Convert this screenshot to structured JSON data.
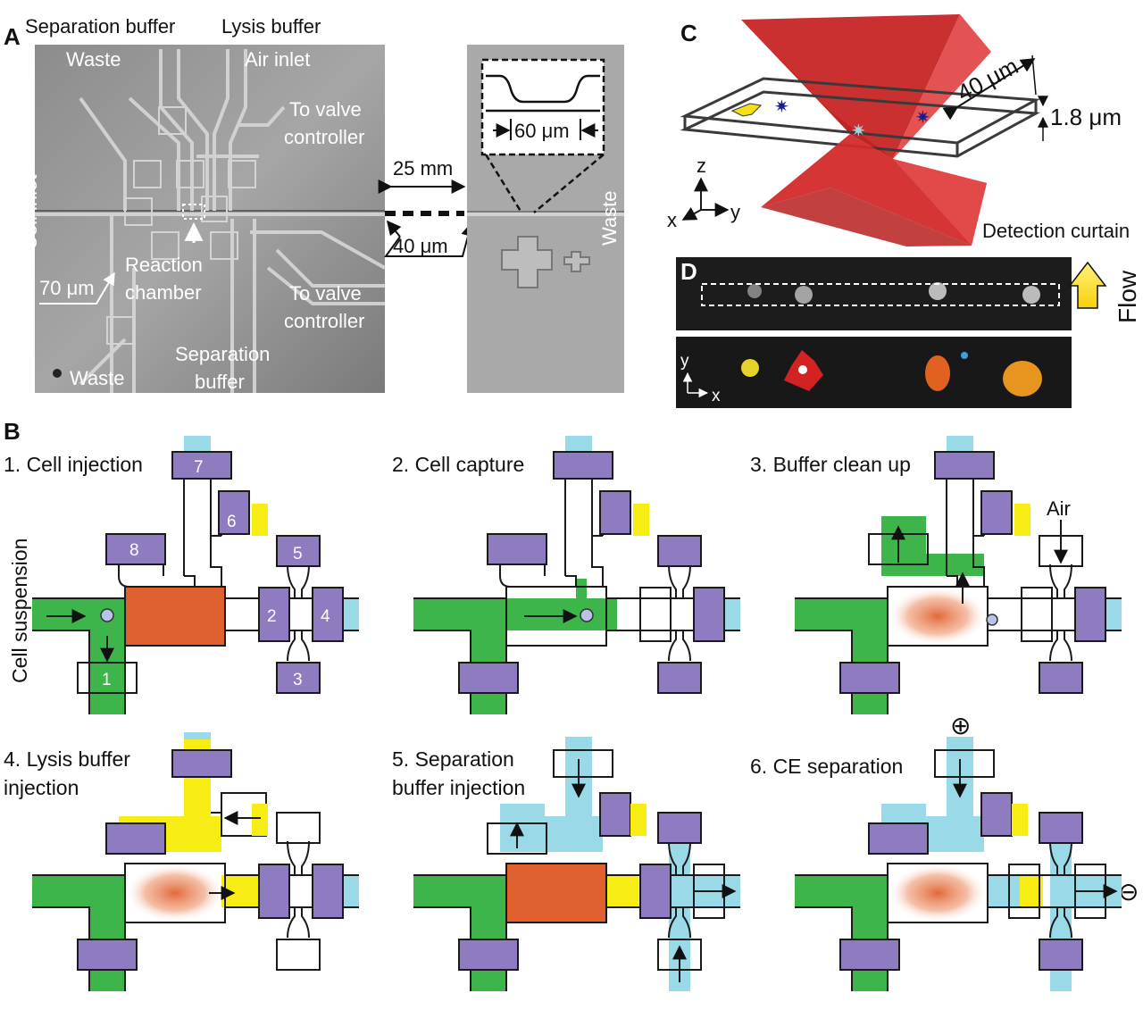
{
  "panels": {
    "a": "A",
    "b": "B",
    "c": "C",
    "d": "D"
  },
  "micrograph": {
    "separation_buffer_top": "Separation buffer",
    "lysis_buffer": "Lysis buffer",
    "waste_top": "Waste",
    "air_inlet": "Air inlet",
    "to_valve_1a": "To valve",
    "to_valve_1b": "controller",
    "cell_inlet": "Cell inlet",
    "reaction_1": "Reaction",
    "reaction_2": "chamber",
    "scale_70": "70 μm",
    "to_valve_2a": "To valve",
    "to_valve_2b": "controller",
    "waste_bottom": "Waste",
    "separation_bottom_1": "Separation",
    "separation_bottom_2": "buffer",
    "dist_25": "25 mm",
    "dist_40": "40 μm",
    "inset_60": "60 μm",
    "waste_right": "Waste"
  },
  "detection": {
    "width_40": "40 μm",
    "height_18": "1.8 μm",
    "axis_z": "z",
    "axis_x": "x",
    "axis_y": "y",
    "curtain": "Detection curtain",
    "flow": "Flow",
    "img_axis_y": "y",
    "img_axis_x": "x"
  },
  "steps": [
    {
      "label": "1. Cell injection"
    },
    {
      "label": "2. Cell capture"
    },
    {
      "label": "3. Buffer clean up"
    },
    {
      "label_line1": "4. Lysis buffer",
      "label_line2": "injection"
    },
    {
      "label_line1": "5. Separation",
      "label_line2": "buffer injection"
    },
    {
      "label": "6. CE separation"
    }
  ],
  "cell_suspension": "Cell suspension",
  "air": "Air",
  "valve_numbers": [
    "1",
    "2",
    "3",
    "4",
    "5",
    "6",
    "7",
    "8"
  ],
  "electrodes": {
    "plus": "⊕",
    "minus": "⊖"
  },
  "colors": {
    "valve": "#8f7bbf",
    "cell_suspension": "#3db54a",
    "separation_buffer": "#9ad9e8",
    "lysis_buffer": "#f7ec13",
    "cell": "#e0612f",
    "laser": "#d42a2a"
  }
}
